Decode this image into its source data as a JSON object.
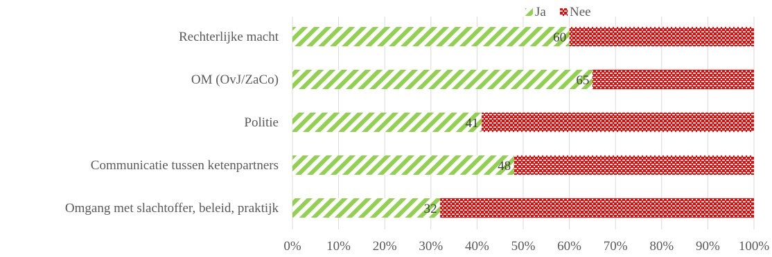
{
  "chart_data": {
    "type": "bar",
    "orientation": "horizontal",
    "stacked": "100%",
    "categories": [
      "Rechterlijke macht",
      "OM (OvJ/ZaCo)",
      "Politie",
      "Communicatie tussen ketenpartners",
      "Omgang met slachtoffer, beleid, praktijk"
    ],
    "series": [
      {
        "name": "Ja",
        "values": [
          60,
          65,
          41,
          48,
          32
        ],
        "color": "#92d050",
        "pattern": "diagonal-stripes"
      },
      {
        "name": "Nee",
        "values": [
          40,
          35,
          59,
          52,
          68
        ],
        "color": "#ff0000",
        "pattern": "crosshatch-dots"
      }
    ],
    "data_labels": [
      "60",
      "65",
      "41",
      "48",
      "32"
    ],
    "x_ticks": [
      "0%",
      "10%",
      "20%",
      "30%",
      "40%",
      "50%",
      "60%",
      "70%",
      "80%",
      "90%",
      "100%"
    ],
    "xlim": [
      0,
      100
    ],
    "title": "",
    "xlabel": "",
    "ylabel": "",
    "grid": true,
    "legend": {
      "placement": "top-right",
      "entries": [
        "Ja",
        "Nee"
      ]
    }
  }
}
